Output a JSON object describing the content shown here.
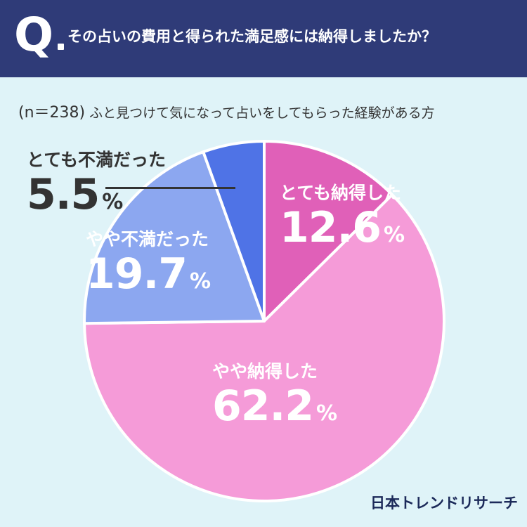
{
  "header": {
    "q_mark": "Q",
    "question": "その占いの費用と得られた満足感には納得しましたか？"
  },
  "subtitle": {
    "n": "(n＝238)",
    "text": "ふと見つけて気になって占いをしてもらった経験がある方"
  },
  "brand": "日本トレンドリサーチ",
  "chart_data": {
    "type": "pie",
    "title": "その占いの費用と得られた満足感には納得しましたか？",
    "subtitle": "(n＝238) ふと見つけて気になって占いをしてもらった経験がある方",
    "unit": "%",
    "slices": [
      {
        "label": "とても納得した",
        "value": 12.6,
        "value_text": "12.6",
        "color": "#e060b8"
      },
      {
        "label": "やや納得した",
        "value": 62.2,
        "value_text": "62.2",
        "color": "#f59bd8"
      },
      {
        "label": "やや不満だった",
        "value": 19.7,
        "value_text": "19.7",
        "color": "#8ca7f0"
      },
      {
        "label": "とても不満だった",
        "value": 5.5,
        "value_text": "5.5",
        "color": "#4f73e6"
      }
    ],
    "start": "12 o'clock",
    "direction": "clockwise"
  }
}
